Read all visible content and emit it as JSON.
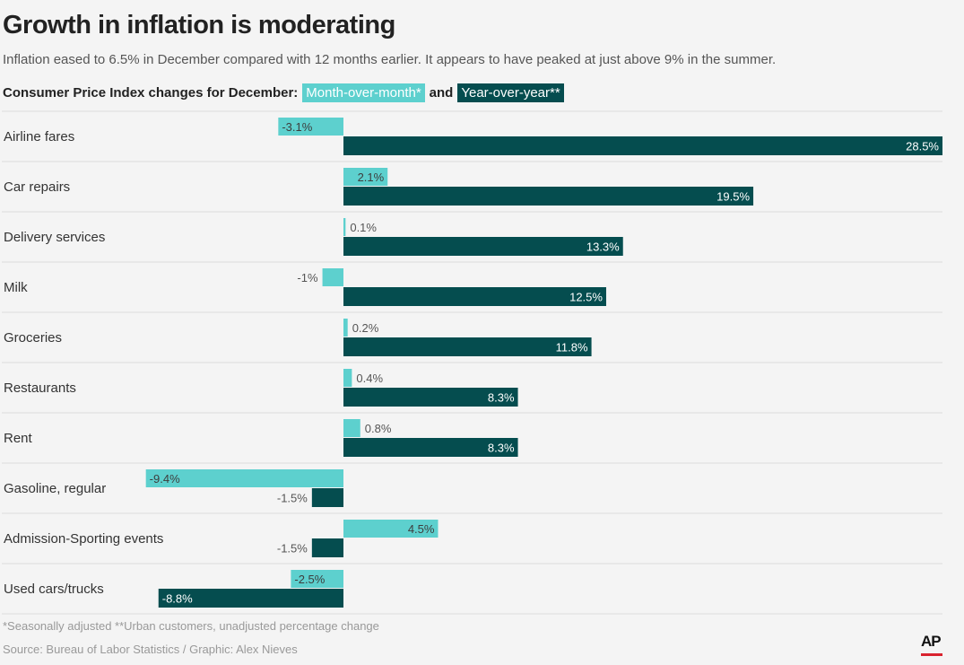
{
  "header": {
    "title": "Growth in inflation is moderating",
    "subtitle": "Inflation eased to 6.5% in December compared with 12 months earlier. It appears to have peaked at just above 9% in the summer."
  },
  "legend": {
    "prefix": "Consumer Price Index changes for December:",
    "mom_label": "Month-over-month*",
    "joiner": "and",
    "yoy_label": "Year-over-year**"
  },
  "colors": {
    "mom": "#5dd0ce",
    "yoy": "#054d4f",
    "label_dark": "#555555",
    "label_light": "#ffffff"
  },
  "chart_data": {
    "type": "bar",
    "orientation": "horizontal",
    "title": "Consumer Price Index changes for December",
    "categories": [
      "Airline fares",
      "Car repairs",
      "Delivery services",
      "Milk",
      "Groceries",
      "Restaurants",
      "Rent",
      "Gasoline, regular",
      "Admission-Sporting events",
      "Used cars/trucks"
    ],
    "series": [
      {
        "name": "Month-over-month*",
        "values": [
          -3.1,
          2.1,
          0.1,
          -1,
          0.2,
          0.4,
          0.8,
          -9.4,
          4.5,
          -2.5
        ],
        "labels": [
          "-3.1%",
          "2.1%",
          "0.1%",
          "-1%",
          "0.2%",
          "0.4%",
          "0.8%",
          "-9.4%",
          "4.5%",
          "-2.5%"
        ]
      },
      {
        "name": "Year-over-year**",
        "values": [
          28.5,
          19.5,
          13.3,
          12.5,
          11.8,
          8.3,
          8.3,
          -1.5,
          -1.5,
          -8.8
        ],
        "labels": [
          "28.5%",
          "19.5%",
          "13.3%",
          "12.5%",
          "11.8%",
          "8.3%",
          "8.3%",
          "-1.5%",
          "-1.5%",
          "-8.8%"
        ]
      }
    ],
    "xlim": [
      -9.4,
      28.5
    ],
    "grid": false,
    "legend_position": "top"
  },
  "footer": {
    "footnote": "*Seasonally adjusted **Urban customers, unadjusted percentage change",
    "source": "Source: Bureau of Labor Statistics / Graphic: Alex Nieves",
    "logo_text": "AP"
  }
}
